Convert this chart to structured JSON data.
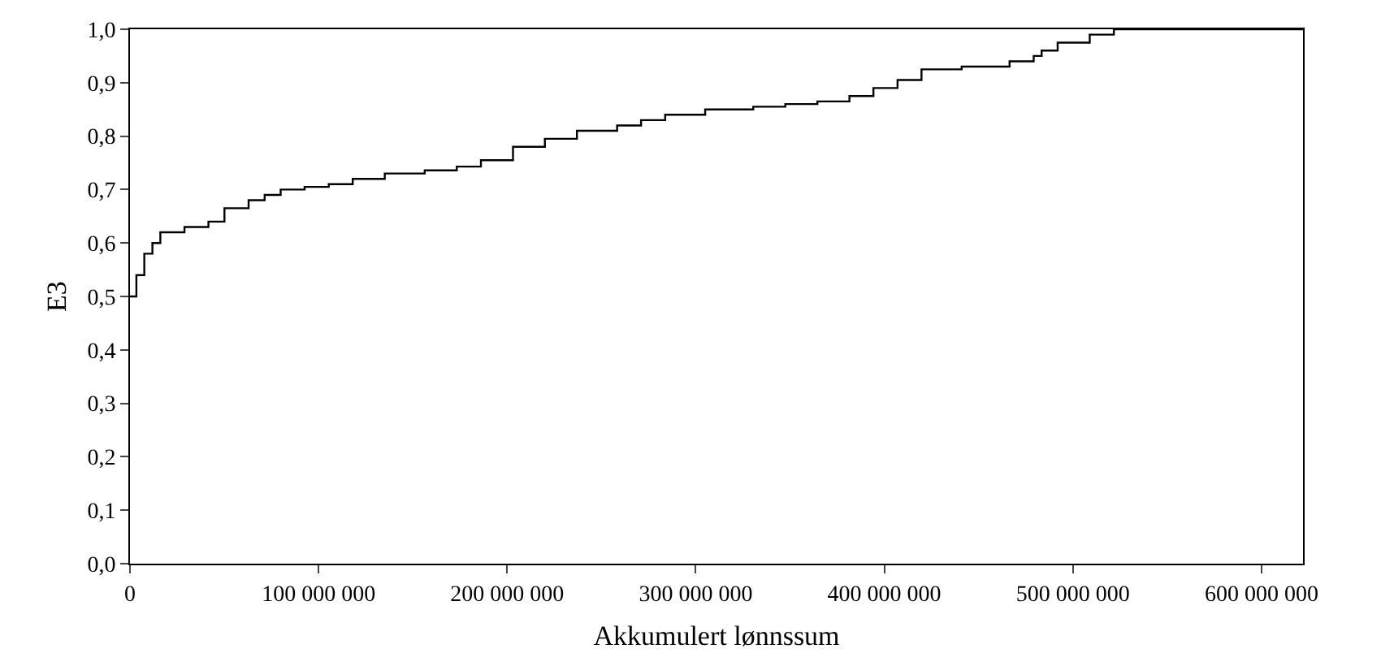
{
  "chart_data": {
    "type": "step",
    "xlabel": "Akkumulert lønnssum",
    "ylabel": "E3",
    "x": [
      0,
      3400000,
      7600000,
      11900000,
      16100000,
      28900000,
      41600000,
      50100000,
      62900000,
      71400000,
      79900000,
      92600000,
      105400000,
      118100000,
      135100000,
      156300000,
      173300000,
      186100000,
      203100000,
      220000000,
      237000000,
      258300000,
      271000000,
      283800000,
      305000000,
      330500000,
      347500000,
      364500000,
      381500000,
      394200000,
      407000000,
      419700000,
      441000000,
      466400000,
      479200000,
      483400000,
      491900000,
      508900000,
      521700000,
      622000000
    ],
    "series": [
      {
        "color": "#000000",
        "values": [
          0.5,
          0.54,
          0.58,
          0.6,
          0.62,
          0.63,
          0.64,
          0.665,
          0.68,
          0.69,
          0.7,
          0.705,
          0.71,
          0.72,
          0.73,
          0.736,
          0.743,
          0.755,
          0.78,
          0.795,
          0.81,
          0.82,
          0.83,
          0.84,
          0.85,
          0.855,
          0.86,
          0.865,
          0.875,
          0.89,
          0.905,
          0.925,
          0.93,
          0.94,
          0.95,
          0.96,
          0.975,
          0.99,
          1.0,
          1.0
        ]
      }
    ],
    "xlim": [
      0,
      622000000
    ],
    "xticks": [
      0,
      {
        "value": 100000000,
        "label": "100 000 000"
      },
      {
        "value": 200000000,
        "label": "200 000 000"
      },
      {
        "value": 300000000,
        "label": "300 000 000"
      },
      {
        "value": 400000000,
        "label": "400 000 000"
      },
      {
        "value": 500000000,
        "label": "500 000 000"
      },
      {
        "value": 600000000,
        "label": "600 000 000"
      }
    ],
    "ylim": [
      0,
      1
    ],
    "yticks": [
      {
        "value": 0,
        "label": "0,0"
      },
      {
        "value": 0.1,
        "label": "0,1"
      },
      {
        "value": 0.2,
        "label": "0,2"
      },
      {
        "value": 0.3,
        "label": "0,3"
      },
      {
        "value": 0.4,
        "label": "0,4"
      },
      {
        "value": 0.5,
        "label": "0,5"
      },
      {
        "value": 0.6,
        "label": "0,6"
      },
      {
        "value": 0.7,
        "label": "0,7"
      },
      {
        "value": 0.8,
        "label": "0,8"
      },
      {
        "value": 0.9,
        "label": "0,9"
      },
      {
        "value": 1.0,
        "label": "1,0"
      }
    ],
    "marker": "none",
    "line_style": "solid"
  }
}
